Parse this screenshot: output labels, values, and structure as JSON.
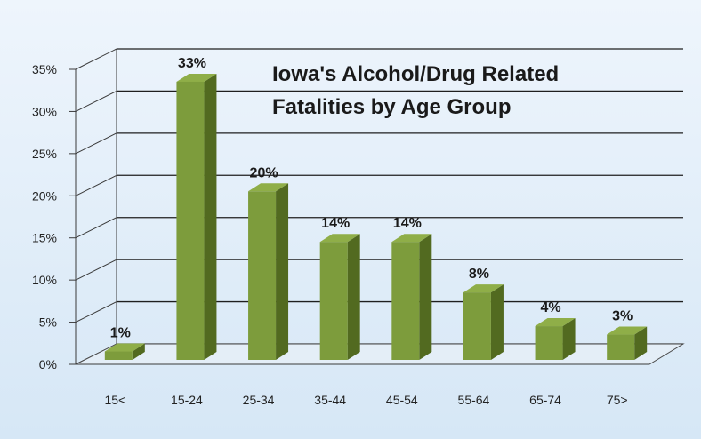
{
  "chart_data": {
    "type": "bar",
    "title_line1": "Iowa's Alcohol/Drug Related",
    "title_line2": "Fatalities by Age Group",
    "categories": [
      "15<",
      "15-24",
      "25-34",
      "35-44",
      "45-54",
      "55-64",
      "65-74",
      "75>"
    ],
    "values": [
      1,
      33,
      20,
      14,
      14,
      8,
      4,
      3
    ],
    "value_labels": [
      "1%",
      "33%",
      "20%",
      "14%",
      "14%",
      "8%",
      "4%",
      "3%"
    ],
    "y_ticks": [
      "0%",
      "5%",
      "10%",
      "15%",
      "20%",
      "25%",
      "30%",
      "35%"
    ],
    "ylim": [
      0,
      35
    ],
    "xlabel": "",
    "ylabel": "",
    "grid": true,
    "legend": "none",
    "bar_color": "#7a9a3a",
    "background_color": "#e0edf8"
  }
}
